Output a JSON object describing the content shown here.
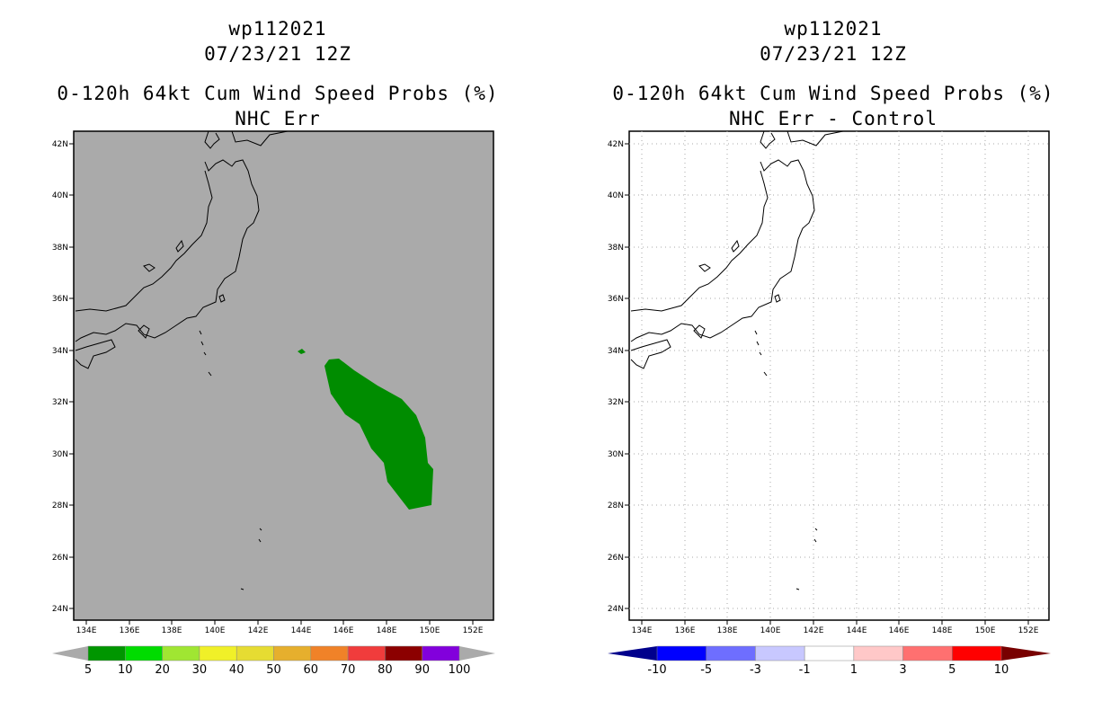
{
  "left_panel": {
    "title_lines": [
      "wp112021",
      "07/23/21 12Z",
      "0-120h 64kt Cum Wind Speed Probs (%)",
      "NHC Err"
    ],
    "background_color": "#aaaaaa",
    "prob_fill_color": "#008c00",
    "lat_labels": [
      "42N",
      "40N",
      "38N",
      "36N",
      "34N",
      "32N",
      "30N",
      "28N",
      "26N",
      "24N"
    ],
    "lon_labels": [
      "134E",
      "136E",
      "138E",
      "140E",
      "142E",
      "144E",
      "146E",
      "148E",
      "150E",
      "152E"
    ],
    "colorbar": {
      "colors": [
        "#009600",
        "#00dc00",
        "#a0e632",
        "#f0f028",
        "#e6dc32",
        "#e6af2d",
        "#f08228",
        "#f03c3c",
        "#8c0000",
        "#8200dc"
      ],
      "labels": [
        "5",
        "10",
        "20",
        "30",
        "40",
        "50",
        "60",
        "70",
        "80",
        "90",
        "100"
      ]
    }
  },
  "right_panel": {
    "title_lines": [
      "wp112021",
      "07/23/21 12Z",
      "0-120h 64kt Cum Wind Speed Probs (%)",
      "NHC Err - Control"
    ],
    "background_color": "#ffffff",
    "grid": true,
    "lat_labels": [
      "42N",
      "40N",
      "38N",
      "36N",
      "34N",
      "32N",
      "30N",
      "28N",
      "26N",
      "24N"
    ],
    "lon_labels": [
      "134E",
      "136E",
      "138E",
      "140E",
      "142E",
      "144E",
      "146E",
      "148E",
      "150E",
      "152E"
    ],
    "colorbar": {
      "colors": [
        "#00008c",
        "#0000ff",
        "#6e6eff",
        "#c8c8ff",
        "#ffffff",
        "#ffc8c8",
        "#ff7070",
        "#ff0000",
        "#780000"
      ],
      "labels": [
        "-10",
        "-5",
        "-3",
        "-1",
        "1",
        "3",
        "5",
        "10"
      ]
    }
  }
}
